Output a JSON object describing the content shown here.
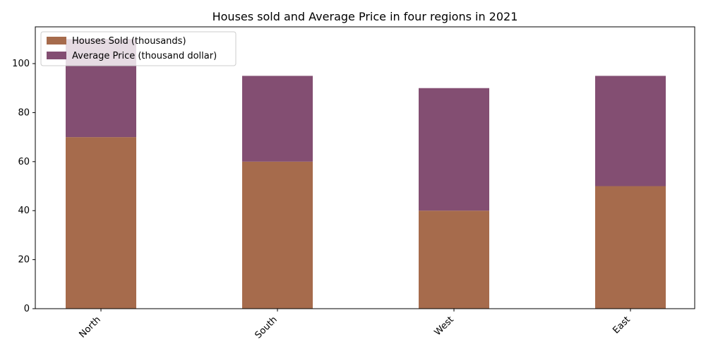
{
  "chart_data": {
    "type": "bar",
    "stacked": true,
    "title": "Houses sold and Average Price in four regions in 2021",
    "xlabel": "",
    "ylabel": "",
    "categories": [
      "North",
      "South",
      "West",
      "East"
    ],
    "series": [
      {
        "name": "Houses Sold (thousands)",
        "values": [
          70,
          60,
          40,
          50
        ],
        "color": "#a66b4c"
      },
      {
        "name": "Average Price (thousand dollar)",
        "values": [
          40,
          35,
          50,
          45
        ],
        "color": "#834e72"
      }
    ],
    "ylim": [
      0,
      115
    ],
    "yticks": [
      0,
      20,
      40,
      60,
      80,
      100
    ],
    "grid": false,
    "legend": "top-left",
    "xtick_rotation": 45
  }
}
